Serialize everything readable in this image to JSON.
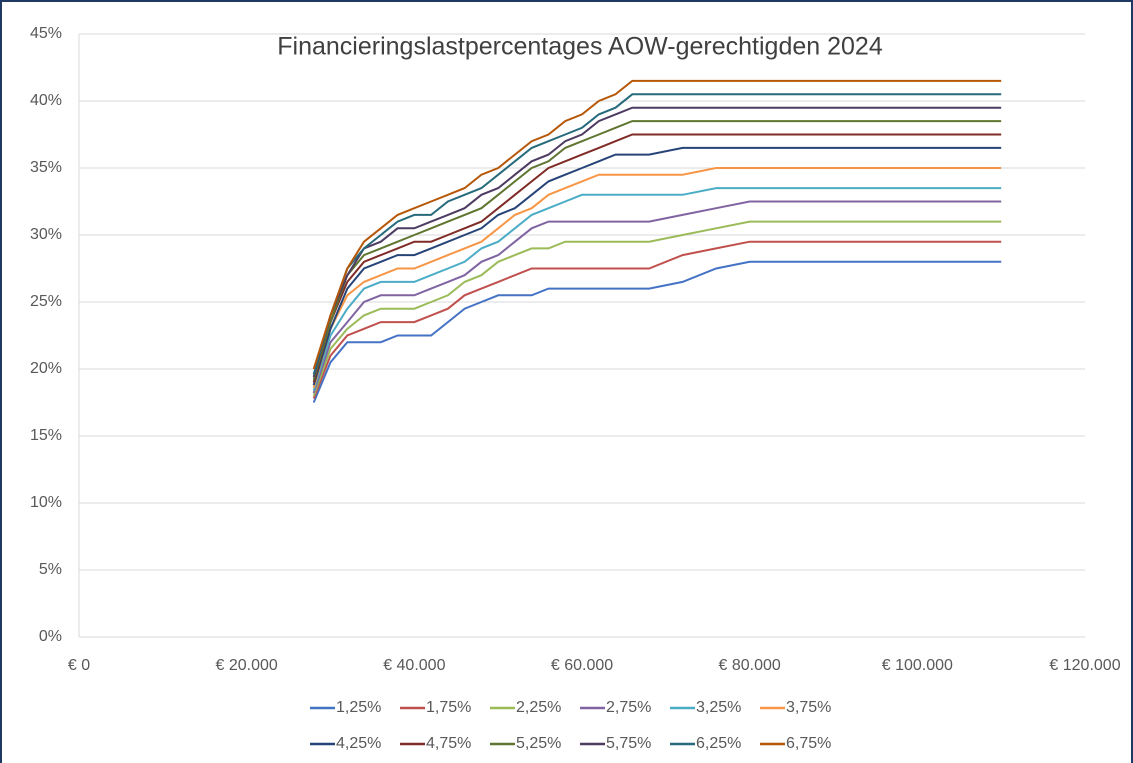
{
  "chart_data": {
    "type": "line",
    "title": "Financieringslastpercentages AOW-gerechtigden 2024",
    "x": [
      28000,
      30000,
      32000,
      34000,
      36000,
      38000,
      40000,
      42000,
      44000,
      46000,
      48000,
      50000,
      52000,
      54000,
      56000,
      58000,
      60000,
      62000,
      64000,
      66000,
      68000,
      72000,
      76000,
      80000,
      110000
    ],
    "xlim": [
      0,
      120000
    ],
    "xticks": [
      {
        "value": 0,
        "label": "€ 0"
      },
      {
        "value": 20000,
        "label": "€ 20.000"
      },
      {
        "value": 40000,
        "label": "€ 40.000"
      },
      {
        "value": 60000,
        "label": "€ 60.000"
      },
      {
        "value": 80000,
        "label": "€ 80.000"
      },
      {
        "value": 100000,
        "label": "€ 100.000"
      },
      {
        "value": 120000,
        "label": "€ 120.000"
      }
    ],
    "ylim": [
      0,
      45
    ],
    "yticks": [
      {
        "value": 0,
        "label": "0%"
      },
      {
        "value": 5,
        "label": "5%"
      },
      {
        "value": 10,
        "label": "10%"
      },
      {
        "value": 15,
        "label": "15%"
      },
      {
        "value": 20,
        "label": "20%"
      },
      {
        "value": 25,
        "label": "25%"
      },
      {
        "value": 30,
        "label": "30%"
      },
      {
        "value": 35,
        "label": "35%"
      },
      {
        "value": 40,
        "label": "40%"
      },
      {
        "value": 45,
        "label": "45%"
      }
    ],
    "grid": true,
    "legend": "bottom",
    "series": [
      {
        "name": "1,25%",
        "color": "#4472c4",
        "values": [
          17.5,
          20.5,
          22,
          22,
          22,
          22.5,
          22.5,
          22.5,
          23.5,
          24.5,
          25,
          25.5,
          25.5,
          25.5,
          26,
          26,
          26,
          26,
          26,
          26,
          26,
          26.5,
          27.5,
          28,
          28
        ]
      },
      {
        "name": "1,75%",
        "color": "#c0504d",
        "values": [
          17.8,
          21,
          22.5,
          23,
          23.5,
          23.5,
          23.5,
          24,
          24.5,
          25.5,
          26,
          26.5,
          27,
          27.5,
          27.5,
          27.5,
          27.5,
          27.5,
          27.5,
          27.5,
          27.5,
          28.5,
          29,
          29.5,
          29.5
        ]
      },
      {
        "name": "2,25%",
        "color": "#9bbb59",
        "values": [
          18,
          21.5,
          23,
          24,
          24.5,
          24.5,
          24.5,
          25,
          25.5,
          26.5,
          27,
          28,
          28.5,
          29,
          29,
          29.5,
          29.5,
          29.5,
          29.5,
          29.5,
          29.5,
          30,
          30.5,
          31,
          31
        ]
      },
      {
        "name": "2,75%",
        "color": "#8064a2",
        "values": [
          18.2,
          22,
          23.5,
          25,
          25.5,
          25.5,
          25.5,
          26,
          26.5,
          27,
          28,
          28.5,
          29.5,
          30.5,
          31,
          31,
          31,
          31,
          31,
          31,
          31,
          31.5,
          32,
          32.5,
          32.5
        ]
      },
      {
        "name": "3,25%",
        "color": "#4bacc6",
        "values": [
          18.4,
          22.5,
          24.5,
          26,
          26.5,
          26.5,
          26.5,
          27,
          27.5,
          28,
          29,
          29.5,
          30.5,
          31.5,
          32,
          32.5,
          33,
          33,
          33,
          33,
          33,
          33,
          33.5,
          33.5,
          33.5
        ]
      },
      {
        "name": "3,75%",
        "color": "#f79646",
        "values": [
          18.6,
          23,
          25.5,
          26.5,
          27,
          27.5,
          27.5,
          28,
          28.5,
          29,
          29.5,
          30.5,
          31.5,
          32,
          33,
          33.5,
          34,
          34.5,
          34.5,
          34.5,
          34.5,
          34.5,
          35,
          35,
          35
        ]
      },
      {
        "name": "4,25%",
        "color": "#264478",
        "values": [
          18.8,
          23,
          26,
          27.5,
          28,
          28.5,
          28.5,
          29,
          29.5,
          30,
          30.5,
          31.5,
          32,
          33,
          34,
          34.5,
          35,
          35.5,
          36,
          36,
          36,
          36.5,
          36.5,
          36.5,
          36.5
        ]
      },
      {
        "name": "4,75%",
        "color": "#7f2b27",
        "values": [
          19,
          23.5,
          26.5,
          28,
          28.5,
          29,
          29.5,
          29.5,
          30,
          30.5,
          31,
          32,
          33,
          34,
          35,
          35.5,
          36,
          36.5,
          37,
          37.5,
          37.5,
          37.5,
          37.5,
          37.5,
          37.5
        ]
      },
      {
        "name": "5,25%",
        "color": "#5f7530",
        "values": [
          19.2,
          23.5,
          27,
          28.5,
          29,
          29.5,
          30,
          30.5,
          31,
          31.5,
          32,
          33,
          34,
          35,
          35.5,
          36.5,
          37,
          37.5,
          38,
          38.5,
          38.5,
          38.5,
          38.5,
          38.5,
          38.5
        ]
      },
      {
        "name": "5,75%",
        "color": "#4d3b62",
        "values": [
          19.4,
          24,
          27,
          29,
          29.5,
          30.5,
          30.5,
          31,
          31.5,
          32,
          33,
          33.5,
          34.5,
          35.5,
          36,
          37,
          37.5,
          38.5,
          39,
          39.5,
          39.5,
          39.5,
          39.5,
          39.5,
          39.5
        ]
      },
      {
        "name": "6,25%",
        "color": "#276a7c",
        "values": [
          19.6,
          24,
          27.5,
          29,
          30,
          31,
          31.5,
          31.5,
          32.5,
          33,
          33.5,
          34.5,
          35.5,
          36.5,
          37,
          37.5,
          38,
          39,
          39.5,
          40.5,
          40.5,
          40.5,
          40.5,
          40.5,
          40.5
        ]
      },
      {
        "name": "6,75%",
        "color": "#b65708",
        "values": [
          20,
          24,
          27.5,
          29.5,
          30.5,
          31.5,
          32,
          32.5,
          33,
          33.5,
          34.5,
          35,
          36,
          37,
          37.5,
          38.5,
          39,
          40,
          40.5,
          41.5,
          41.5,
          41.5,
          41.5,
          41.5,
          41.5
        ]
      }
    ]
  }
}
